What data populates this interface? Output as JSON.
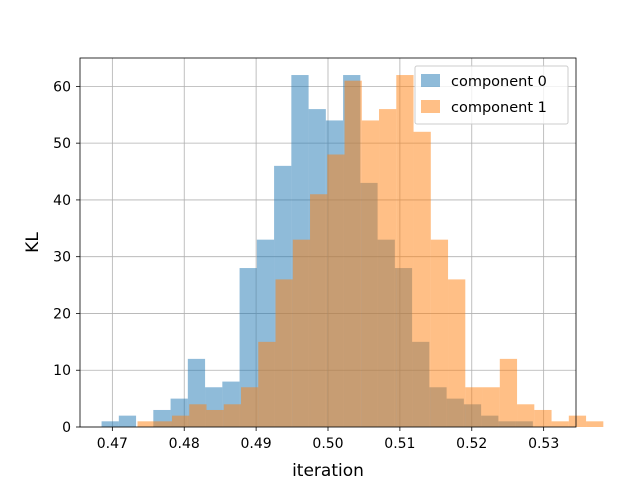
{
  "chart_data": {
    "type": "histogram",
    "title": "",
    "xlabel": "iteration",
    "ylabel": "KL",
    "xlim": [
      0.4655,
      0.5345
    ],
    "ylim": [
      0,
      65
    ],
    "xticks": [
      0.47,
      0.48,
      0.49,
      0.5,
      0.51,
      0.52,
      0.53
    ],
    "xtick_labels": [
      "0.47",
      "0.48",
      "0.49",
      "0.50",
      "0.51",
      "0.52",
      "0.53"
    ],
    "yticks": [
      0,
      10,
      20,
      30,
      40,
      50,
      60
    ],
    "ytick_labels": [
      "0",
      "10",
      "20",
      "30",
      "40",
      "50",
      "60"
    ],
    "grid": true,
    "legend_position": "top-right",
    "series": [
      {
        "name": "component 0",
        "color": "#1f77b4",
        "opacity": 0.5,
        "bin_start": 0.4685,
        "bin_width": 0.0024,
        "counts": [
          1,
          2,
          0,
          3,
          5,
          12,
          7,
          8,
          28,
          33,
          46,
          62,
          56,
          54,
          62,
          43,
          33,
          28,
          15,
          7,
          5,
          4,
          2,
          1,
          1,
          0,
          0,
          0
        ]
      },
      {
        "name": "component 1",
        "color": "#ff7f0e",
        "opacity": 0.5,
        "bin_start": 0.4735,
        "bin_width": 0.0024,
        "counts": [
          1,
          1,
          2,
          4,
          3,
          4,
          7,
          15,
          26,
          33,
          41,
          48,
          61,
          54,
          56,
          62,
          52,
          33,
          26,
          7,
          7,
          12,
          4,
          3,
          1,
          2,
          1,
          0
        ]
      }
    ]
  }
}
